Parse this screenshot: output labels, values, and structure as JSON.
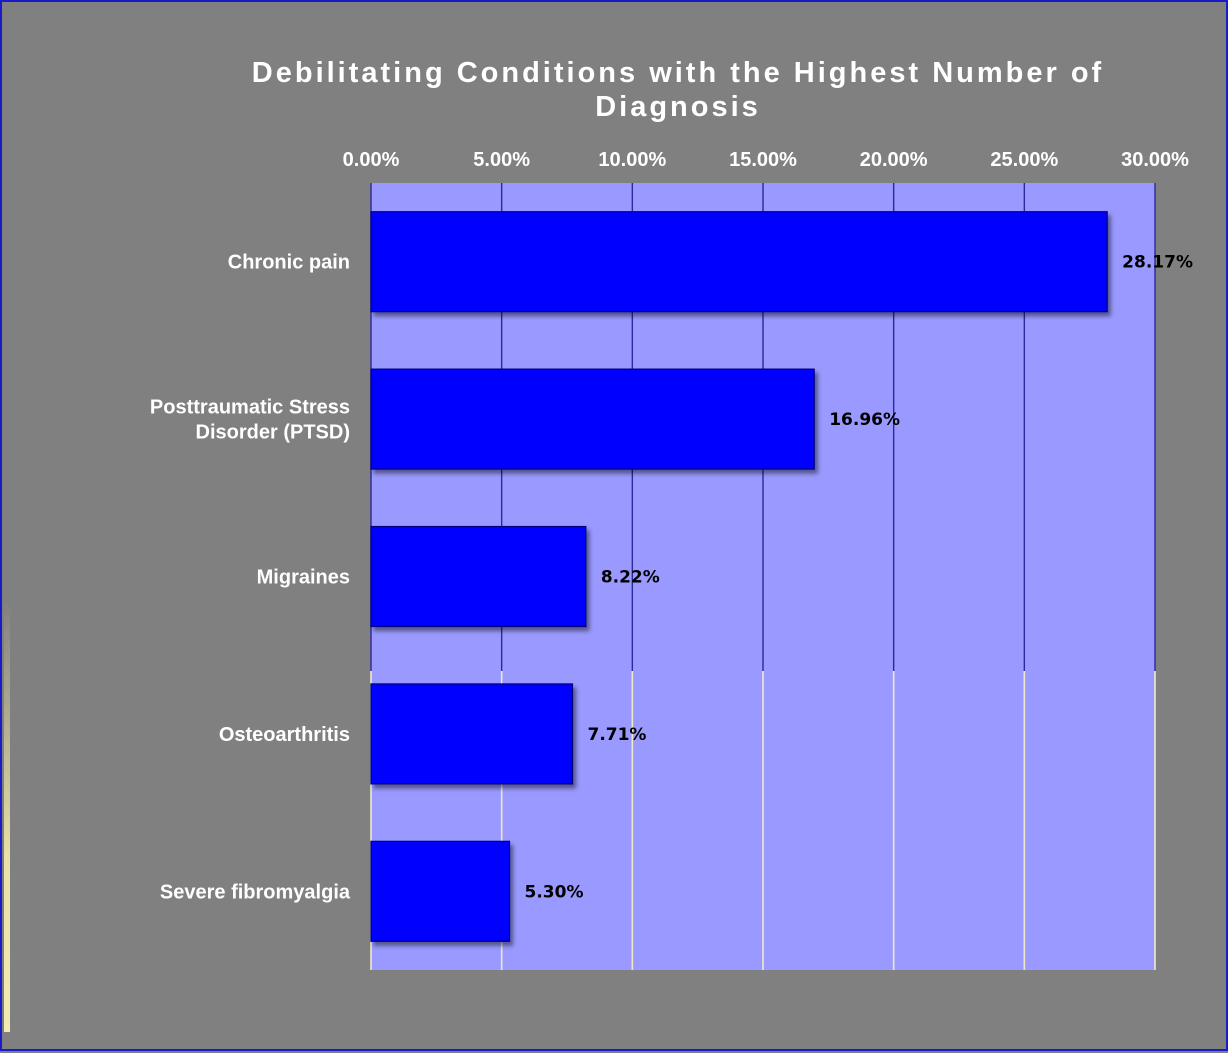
{
  "chart_data": {
    "type": "bar",
    "orientation": "horizontal",
    "title": "Debilitating Conditions with the Highest  Number of Diagnosis",
    "title_lines": [
      "Debilitating Conditions with the Highest  Number of",
      "Diagnosis"
    ],
    "categories": [
      "Chronic pain",
      "Posttraumatic Stress Disorder (PTSD)",
      "Migraines",
      "Osteoarthritis",
      "Severe fibromyalgia"
    ],
    "category_lines": [
      [
        "Chronic pain"
      ],
      [
        "Posttraumatic Stress",
        "Disorder (PTSD)"
      ],
      [
        "Migraines"
      ],
      [
        "Osteoarthritis"
      ],
      [
        "Severe fibromyalgia"
      ]
    ],
    "values": [
      28.17,
      16.96,
      8.22,
      7.71,
      5.3
    ],
    "data_labels": [
      "28.17%",
      "16.96%",
      "8.22%",
      "7.71%",
      "5.30%"
    ],
    "xlim": [
      0,
      30
    ],
    "ticks": [
      0,
      5,
      10,
      15,
      20,
      25,
      30
    ],
    "tick_labels": [
      "0.00%",
      "5.00%",
      "10.00%",
      "15.00%",
      "20.00%",
      "25.00%",
      "30.00%"
    ],
    "axis_position": "top",
    "grid": true,
    "legend": "none",
    "colors": {
      "bar": "#0000ff",
      "plot_background": "#9999ff",
      "chart_background": "#808080"
    }
  }
}
